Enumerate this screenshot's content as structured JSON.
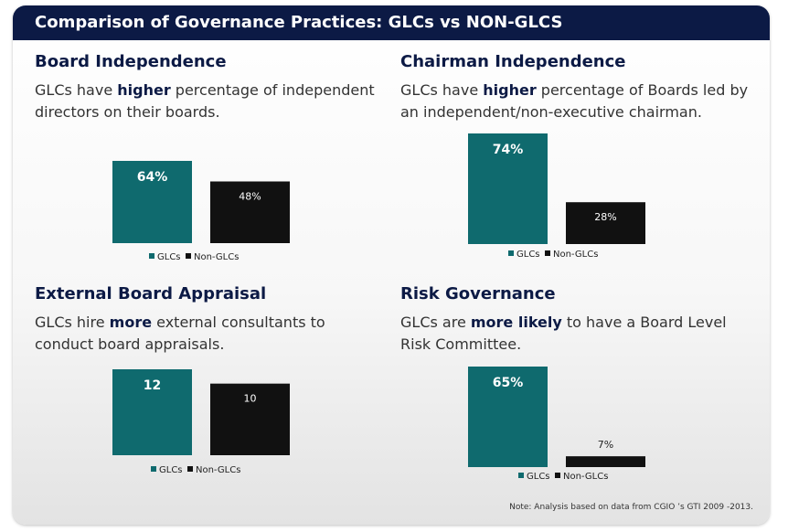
{
  "title": "Comparison of Governance Practices: GLCs vs NON-GLCS",
  "note": "Note: Analysis based on data from CGIO ’s GTI 2009 -2013.",
  "colors": {
    "glc": "#0f6a6e",
    "non_glc": "#111111",
    "title_bg": "#0c1a45"
  },
  "panels": [
    {
      "heading": "Board Independence",
      "desc_pre": "GLCs have ",
      "desc_bold": "higher",
      "desc_post": " percentage of independent directors on their boards."
    },
    {
      "heading": "Chairman Independence",
      "desc_pre": "GLCs have ",
      "desc_bold": "higher",
      "desc_post": " percentage of Boards led by an independent/non-executive chairman."
    },
    {
      "heading": "External Board Appraisal",
      "desc_pre": "GLCs hire ",
      "desc_bold": "more",
      "desc_post": " external consultants to conduct board appraisals."
    },
    {
      "heading": "Risk Governance",
      "desc_pre": "GLCs are ",
      "desc_bold": "more likely",
      "desc_post": " to have a Board Level Risk Committee."
    }
  ],
  "chart_data": [
    {
      "type": "bar",
      "title": "Board Independence",
      "categories": [
        "GLCs",
        "Non-GLCs"
      ],
      "values": [
        64,
        48
      ],
      "labels": [
        "64%",
        "48%"
      ],
      "legend": [
        "GLCs",
        "Non-GLCs"
      ]
    },
    {
      "type": "bar",
      "title": "Chairman Independence",
      "categories": [
        "GLCs",
        "Non-GLCs"
      ],
      "values": [
        74,
        28
      ],
      "labels": [
        "74%",
        "28%"
      ],
      "legend": [
        "GLCs",
        "Non-GLCs"
      ]
    },
    {
      "type": "bar",
      "title": "External Board Appraisal",
      "categories": [
        "GLCs",
        "Non-GLCs"
      ],
      "values": [
        12,
        10
      ],
      "labels": [
        "12",
        "10"
      ],
      "legend": [
        "GLCs",
        "Non-GLCs"
      ]
    },
    {
      "type": "bar",
      "title": "Risk Governance",
      "categories": [
        "GLCs",
        "Non-GLCs"
      ],
      "values": [
        65,
        7
      ],
      "labels": [
        "65%",
        "7%"
      ],
      "legend": [
        "GLCs",
        "Non-GLCs"
      ]
    }
  ]
}
